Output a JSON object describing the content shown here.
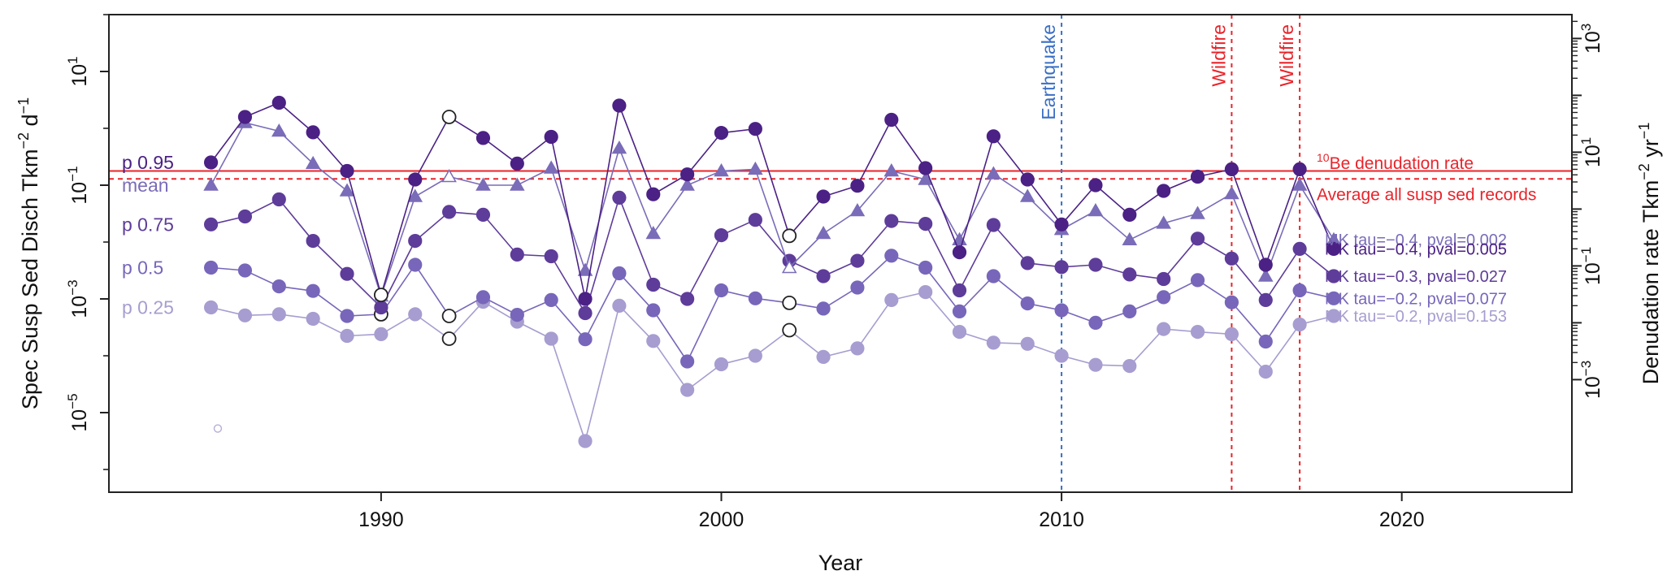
{
  "chart_data": {
    "type": "line",
    "x_range": [
      1982,
      2025
    ],
    "x_ticks": [
      "1990",
      "2000",
      "2010",
      "2020"
    ],
    "xlabel": "Year",
    "ylabel_left": {
      "base": "Spec Susp Sed Disch Tkm",
      "exp1": "−2",
      "mid": " d",
      "exp2": "−1"
    },
    "ylabel_right": {
      "base": "Denudation rate Tkm",
      "exp1": "−2",
      "mid": " yr",
      "exp2": "−1"
    },
    "y_log_range": [
      -6.4,
      2.0
    ],
    "left_ticks": [
      {
        "exp": 1,
        "label": "10",
        "sup": "1"
      },
      {
        "exp": -1,
        "label": "10",
        "sup": "−1"
      },
      {
        "exp": -3,
        "label": "10",
        "sup": "−3"
      },
      {
        "exp": -5,
        "label": "10",
        "sup": "−5"
      }
    ],
    "right_ticks": [
      {
        "exp": 3,
        "label": "10",
        "sup": "3"
      },
      {
        "exp": 1,
        "label": "10",
        "sup": "1"
      },
      {
        "exp": -1,
        "label": "10",
        "sup": "−1"
      },
      {
        "exp": -3,
        "label": "10",
        "sup": "−3"
      }
    ],
    "right_axis_offset_log": -1.42,
    "years": [
      1985,
      1986,
      1987,
      1988,
      1989,
      1990,
      1991,
      1992,
      1993,
      1994,
      1995,
      1996,
      1997,
      1998,
      1999,
      2000,
      2001,
      2002,
      2003,
      2004,
      2005,
      2006,
      2007,
      2008,
      2009,
      2010,
      2011,
      2012,
      2013,
      2014,
      2015,
      2016,
      2017,
      2018
    ],
    "series": [
      {
        "name": "p 0.95",
        "color": "#4b2185",
        "marker": "circle",
        "log_values": [
          -0.6,
          0.2,
          0.45,
          -0.07,
          -0.75,
          -2.93,
          -0.9,
          0.2,
          -0.17,
          -0.62,
          -0.15,
          -3.0,
          0.4,
          -1.16,
          -0.81,
          -0.08,
          -0.01,
          -1.89,
          -1.2,
          -1.01,
          0.15,
          -0.7,
          -2.18,
          -0.14,
          -0.9,
          -1.69,
          -1.0,
          -1.52,
          -1.1,
          -0.85,
          -0.72,
          -2.4,
          -0.72,
          -2.12
        ],
        "open": [
          false,
          false,
          false,
          false,
          false,
          true,
          false,
          true,
          false,
          false,
          false,
          false,
          false,
          false,
          false,
          false,
          false,
          true,
          false,
          false,
          false,
          false,
          false,
          false,
          false,
          false,
          false,
          false,
          false,
          false,
          false,
          false,
          false,
          false
        ],
        "mk": "MK tau=−0.4, pval=0.005"
      },
      {
        "name": "mean",
        "color": "#7a6cb8",
        "marker": "triangle",
        "log_values": [
          -1.0,
          0.1,
          -0.05,
          -0.62,
          -1.1,
          -2.95,
          -1.2,
          -0.85,
          -1.0,
          -1.0,
          -0.7,
          -2.5,
          -0.35,
          -1.85,
          -1.0,
          -0.75,
          -0.72,
          -2.45,
          -1.85,
          -1.45,
          -0.75,
          -0.9,
          -1.96,
          -0.8,
          -1.2,
          -1.78,
          -1.45,
          -1.96,
          -1.67,
          -1.5,
          -1.15,
          -2.6,
          -1.0,
          -1.96
        ],
        "open": [
          false,
          false,
          false,
          false,
          false,
          true,
          false,
          true,
          false,
          false,
          false,
          false,
          false,
          false,
          false,
          false,
          false,
          true,
          false,
          false,
          false,
          false,
          false,
          false,
          false,
          false,
          false,
          false,
          false,
          false,
          false,
          false,
          false,
          false
        ],
        "mk": "MK tau=−0.4, pval=0.002"
      },
      {
        "name": "p 0.75",
        "color": "#5e3c99",
        "marker": "circle",
        "log_values": [
          -1.69,
          -1.55,
          -1.25,
          -1.98,
          -2.56,
          -3.15,
          -1.98,
          -1.47,
          -1.52,
          -2.22,
          -2.25,
          -3.25,
          -1.22,
          -2.75,
          -3.0,
          -1.88,
          -1.61,
          -2.33,
          -2.6,
          -2.33,
          -1.63,
          -1.68,
          -2.85,
          -1.7,
          -2.37,
          -2.44,
          -2.4,
          -2.57,
          -2.65,
          -1.94,
          -2.29,
          -3.02,
          -2.12,
          -2.6
        ],
        "open": [
          false,
          false,
          false,
          false,
          false,
          false,
          false,
          false,
          false,
          false,
          false,
          false,
          false,
          false,
          false,
          false,
          false,
          false,
          false,
          false,
          false,
          false,
          false,
          false,
          false,
          false,
          false,
          false,
          false,
          false,
          false,
          false,
          false,
          false
        ],
        "mk": "MK tau=−0.3, pval=0.027"
      },
      {
        "name": "p 0.5",
        "color": "#7866ba",
        "marker": "circle",
        "log_values": [
          -2.45,
          -2.5,
          -2.78,
          -2.86,
          -3.3,
          -3.27,
          -2.4,
          -3.3,
          -2.97,
          -3.28,
          -3.02,
          -3.71,
          -2.55,
          -3.2,
          -4.1,
          -2.85,
          -2.99,
          -3.07,
          -3.17,
          -2.8,
          -2.24,
          -2.45,
          -3.22,
          -2.6,
          -3.08,
          -3.2,
          -3.42,
          -3.22,
          -2.97,
          -2.67,
          -3.06,
          -3.75,
          -2.85,
          -2.99
        ],
        "open": [
          false,
          false,
          false,
          false,
          false,
          true,
          false,
          true,
          false,
          false,
          false,
          false,
          false,
          false,
          false,
          false,
          false,
          true,
          false,
          false,
          false,
          false,
          false,
          false,
          false,
          false,
          false,
          false,
          false,
          false,
          false,
          false,
          false,
          false
        ],
        "mk": "MK tau=−0.2, pval=0.077"
      },
      {
        "name": "p 0.25",
        "color": "#a79dd0",
        "marker": "circle",
        "log_values": [
          -3.15,
          -3.29,
          -3.27,
          -3.35,
          -3.65,
          -3.62,
          -3.27,
          -3.7,
          -3.05,
          -3.4,
          -3.7,
          -5.5,
          -3.12,
          -3.74,
          -4.6,
          -4.15,
          -4.0,
          -3.55,
          -4.02,
          -3.87,
          -3.02,
          -2.88,
          -3.58,
          -3.77,
          -3.79,
          -4.0,
          -4.16,
          -4.18,
          -3.53,
          -3.58,
          -3.62,
          -4.28,
          -3.45,
          -3.3
        ],
        "open": [
          false,
          false,
          false,
          false,
          false,
          false,
          false,
          true,
          false,
          false,
          false,
          false,
          false,
          false,
          false,
          false,
          false,
          true,
          false,
          false,
          false,
          false,
          false,
          false,
          false,
          false,
          false,
          false,
          false,
          false,
          false,
          false,
          false,
          false
        ],
        "mk": "MK tau=−0.2, pval=0.153"
      }
    ],
    "series_labels": [
      {
        "text": "p 0.95",
        "color": "#4b2185",
        "log": -0.6
      },
      {
        "text": "mean",
        "color": "#7a6cb8",
        "log": -1.0
      },
      {
        "text": "p 0.75",
        "color": "#5e3c99",
        "log": -1.69
      },
      {
        "text": "p 0.5",
        "color": "#7866ba",
        "log": -2.45
      },
      {
        "text": "p 0.25",
        "color": "#a79dd0",
        "log": -3.15
      }
    ],
    "stray_point": {
      "year": 1985.2,
      "log": -5.28,
      "color": "#b7aed8"
    },
    "reference_lines": [
      {
        "log": -0.75,
        "style": "solid",
        "color": "#e8242b",
        "label": "Be denudation rate",
        "label_pre": "10",
        "label_log": -0.6
      },
      {
        "log": -0.89,
        "style": "dashed",
        "color": "#e8242b",
        "label": "Average all susp sed records",
        "label_log": -1.15
      }
    ],
    "events": [
      {
        "year": 2010,
        "label": "Earthquake",
        "color": "#3a6fc4"
      },
      {
        "year": 2015,
        "label": "Wildfire",
        "color": "#e8242b"
      },
      {
        "year": 2017,
        "label": "Wildfire",
        "color": "#e8242b"
      }
    ]
  }
}
